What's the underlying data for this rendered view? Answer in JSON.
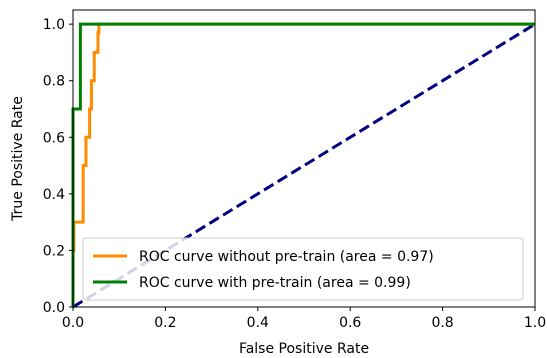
{
  "chart_data": {
    "type": "line",
    "title": "",
    "xlabel": "False Positive Rate",
    "ylabel": "True Positive Rate",
    "xlim": [
      0.0,
      1.0
    ],
    "ylim": [
      0.0,
      1.05
    ],
    "xticks": [
      "0.0",
      "0.2",
      "0.4",
      "0.6",
      "0.8",
      "1.0"
    ],
    "yticks": [
      "0.0",
      "0.2",
      "0.4",
      "0.6",
      "0.8",
      "1.0"
    ],
    "grid": false,
    "legend_position": "lower-right",
    "series": [
      {
        "name": "ROC curve without pre-train (area = 0.97)",
        "color": "#ff8c00",
        "style": "solid",
        "points": [
          [
            0.0,
            0.0
          ],
          [
            0.0,
            0.2
          ],
          [
            0.002,
            0.2
          ],
          [
            0.002,
            0.3
          ],
          [
            0.022,
            0.3
          ],
          [
            0.022,
            0.5
          ],
          [
            0.028,
            0.5
          ],
          [
            0.028,
            0.6
          ],
          [
            0.036,
            0.6
          ],
          [
            0.036,
            0.7
          ],
          [
            0.04,
            0.7
          ],
          [
            0.04,
            0.8
          ],
          [
            0.046,
            0.8
          ],
          [
            0.046,
            0.9
          ],
          [
            0.054,
            0.9
          ],
          [
            0.054,
            0.97
          ],
          [
            0.056,
            0.97
          ],
          [
            0.056,
            1.0
          ],
          [
            1.0,
            1.0
          ]
        ]
      },
      {
        "name": "ROC curve with pre-train (area = 0.99)",
        "color": "#008000",
        "style": "solid",
        "points": [
          [
            0.0,
            0.0
          ],
          [
            0.0,
            0.7
          ],
          [
            0.016,
            0.7
          ],
          [
            0.016,
            1.0
          ],
          [
            1.0,
            1.0
          ]
        ]
      },
      {
        "name": "",
        "color": "#000080",
        "style": "dashed",
        "points": [
          [
            0.0,
            0.0
          ],
          [
            1.0,
            1.0
          ]
        ]
      }
    ]
  }
}
